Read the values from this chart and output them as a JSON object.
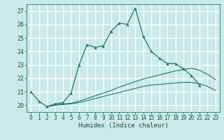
{
  "xlabel": "Humidex (Indice chaleur)",
  "background_color": "#cce9e9",
  "grid_color": "#ffffff",
  "line_color": "#1a7a6e",
  "xlim": [
    -0.5,
    23.5
  ],
  "ylim": [
    19.5,
    27.5
  ],
  "yticks": [
    20,
    21,
    22,
    23,
    24,
    25,
    26,
    27
  ],
  "xticks": [
    0,
    1,
    2,
    3,
    4,
    5,
    6,
    7,
    8,
    9,
    10,
    11,
    12,
    13,
    14,
    15,
    16,
    17,
    18,
    19,
    20,
    21,
    22,
    23
  ],
  "series1_x": [
    0,
    1,
    2,
    3,
    4,
    5,
    6,
    7,
    8,
    9,
    10,
    11,
    12,
    13,
    14,
    15,
    16,
    17,
    18,
    19,
    20,
    21
  ],
  "series1_y": [
    21.0,
    20.3,
    19.9,
    20.1,
    20.2,
    20.9,
    23.0,
    24.5,
    24.3,
    24.4,
    25.5,
    26.1,
    26.0,
    27.2,
    25.1,
    24.0,
    23.5,
    23.1,
    23.1,
    22.7,
    22.2,
    21.5
  ],
  "series2_x": [
    2,
    3,
    4,
    5,
    6,
    7,
    8,
    9,
    10,
    11,
    12,
    13,
    14,
    15,
    16,
    17,
    18,
    19,
    20,
    21,
    22,
    23
  ],
  "series2_y": [
    19.9,
    20.05,
    20.1,
    20.15,
    20.3,
    20.5,
    20.7,
    20.9,
    21.1,
    21.35,
    21.55,
    21.75,
    21.95,
    22.1,
    22.25,
    22.4,
    22.55,
    22.65,
    22.75,
    22.6,
    22.3,
    21.9
  ],
  "series3_x": [
    2,
    3,
    4,
    5,
    6,
    7,
    8,
    9,
    10,
    11,
    12,
    13,
    14,
    15,
    16,
    17,
    18,
    19,
    20,
    21,
    22,
    23
  ],
  "series3_y": [
    19.9,
    20.0,
    20.05,
    20.1,
    20.2,
    20.35,
    20.5,
    20.65,
    20.8,
    20.95,
    21.1,
    21.25,
    21.4,
    21.5,
    21.55,
    21.6,
    21.65,
    21.7,
    21.7,
    21.6,
    21.4,
    21.1
  ]
}
